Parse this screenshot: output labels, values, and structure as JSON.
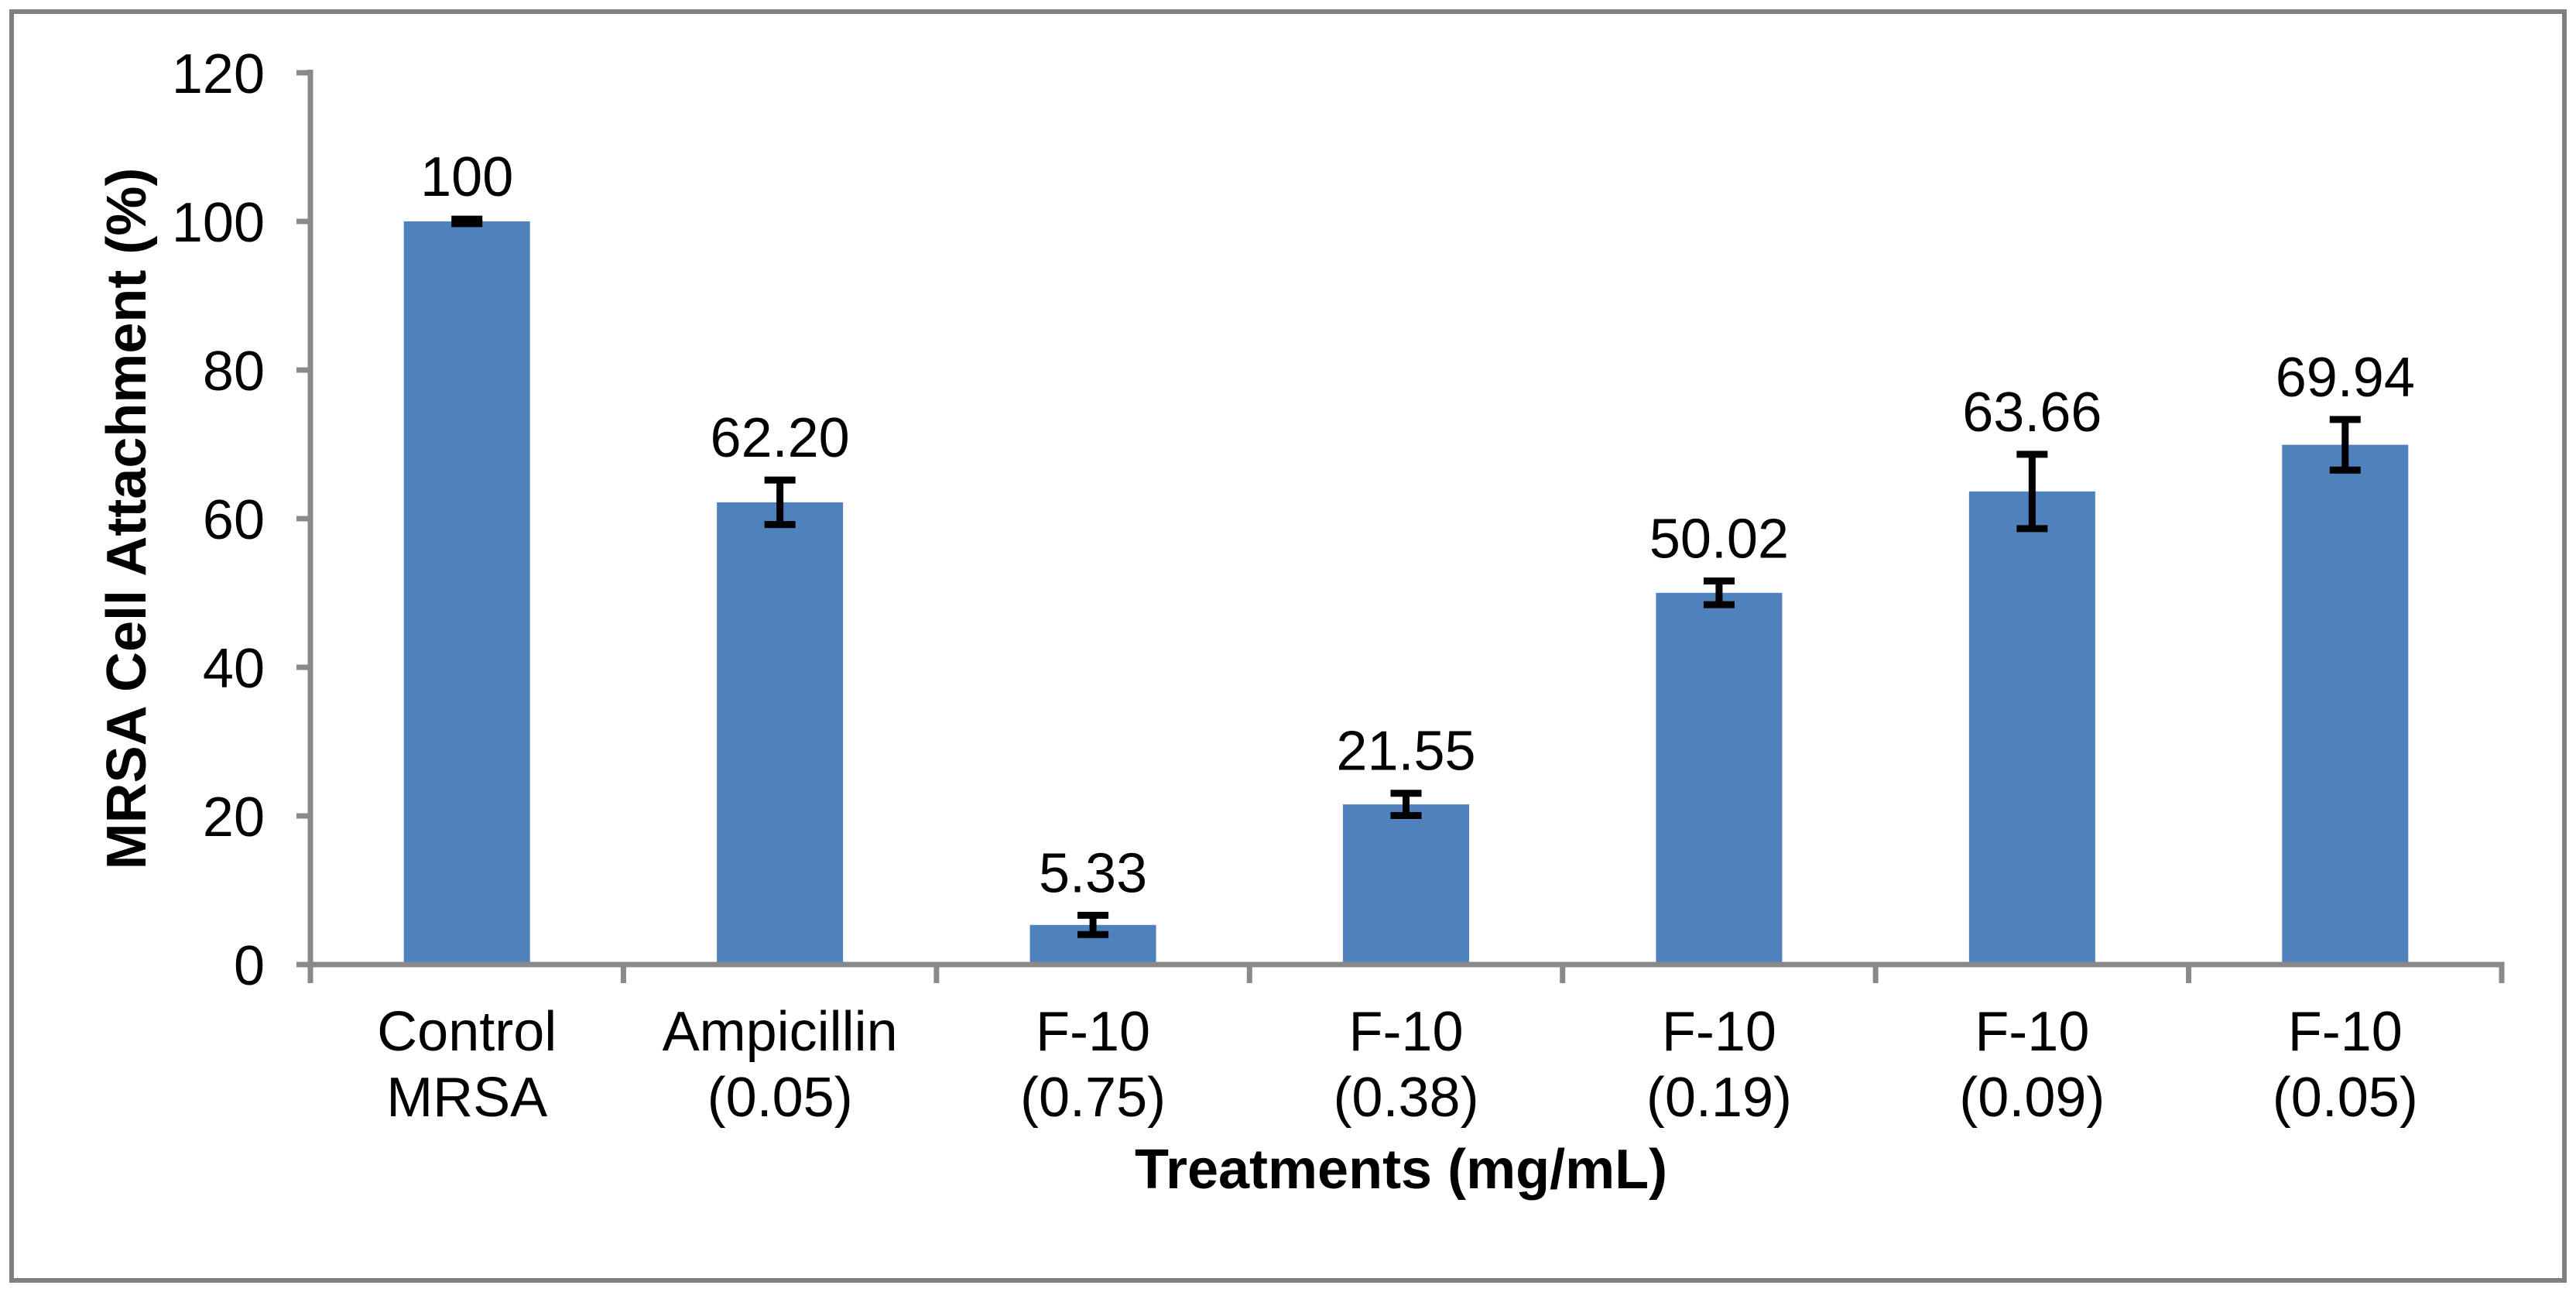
{
  "figure": {
    "background": "#FFFFFF",
    "frame_color": "#808080"
  },
  "chart_data": {
    "type": "bar",
    "title": "",
    "xlabel": "Treatments (mg/mL)",
    "ylabel": "MRSA Cell Attachment (%)",
    "categories": [
      "Control MRSA",
      "Ampicillin (0.05)",
      "F-10 (0.75)",
      "F-10 (0.38)",
      "F-10 (0.19)",
      "F-10 (0.09)",
      "F-10 (0.05)"
    ],
    "categories_lines": [
      [
        "Control",
        "MRSA"
      ],
      [
        "Ampicillin",
        "(0.05)"
      ],
      [
        "F-10",
        "(0.75)"
      ],
      [
        "F-10",
        "(0.38)"
      ],
      [
        "F-10",
        "(0.19)"
      ],
      [
        "F-10",
        "(0.09)"
      ],
      [
        "F-10",
        "(0.05)"
      ]
    ],
    "values": [
      100,
      62.2,
      5.33,
      21.55,
      50.02,
      63.66,
      69.94
    ],
    "value_labels": [
      "100",
      "62.20",
      "5.33",
      "21.55",
      "50.02",
      "63.66",
      "69.94"
    ],
    "error_bars": [
      0.3,
      3.0,
      1.3,
      1.5,
      1.6,
      5.0,
      3.4
    ],
    "ylim": [
      0,
      120
    ],
    "ytick_step": 20,
    "ytick_labels": [
      "0",
      "20",
      "40",
      "60",
      "80",
      "100",
      "120"
    ],
    "grid": false,
    "legend": "none",
    "bar_color": "#4F81BD",
    "error_bar_color": "#000000",
    "axis_color": "#898989",
    "text_color": "#000000"
  }
}
